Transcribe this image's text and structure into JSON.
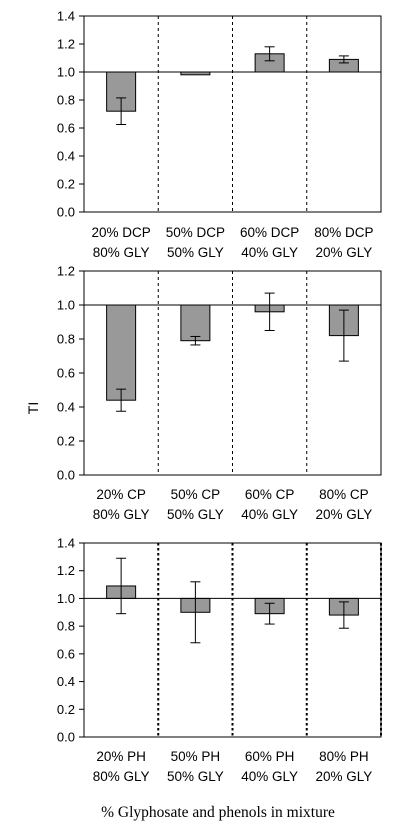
{
  "chart_data": [
    {
      "type": "bar",
      "categories": [
        [
          "20% DCP",
          "80% GLY"
        ],
        [
          "50% DCP",
          "50% GLY"
        ],
        [
          "60% DCP",
          "40% GLY"
        ],
        [
          "80% DCP",
          "20% GLY"
        ]
      ],
      "values": [
        0.72,
        0.98,
        1.13,
        1.09
      ],
      "errors": [
        0.095,
        0.0,
        0.05,
        0.025
      ],
      "baseline": 1.0,
      "ylim": [
        0.0,
        1.4
      ],
      "yticks": [
        "0.0",
        "0.2",
        "0.4",
        "0.6",
        "0.8",
        "1.0",
        "1.2",
        "1.4"
      ],
      "bar_color": "#999999",
      "separator_style": "dashed"
    },
    {
      "type": "bar",
      "categories": [
        [
          "20% CP",
          "80% GLY"
        ],
        [
          "50% CP",
          "50% GLY"
        ],
        [
          "60% CP",
          "40% GLY"
        ],
        [
          "80% CP",
          "20% GLY"
        ]
      ],
      "values": [
        0.44,
        0.79,
        0.96,
        0.82
      ],
      "errors": [
        0.065,
        0.025,
        0.11,
        0.15
      ],
      "baseline": 1.0,
      "ylim": [
        0.0,
        1.2
      ],
      "yticks": [
        "0.0",
        "0.2",
        "0.4",
        "0.6",
        "0.8",
        "1.0",
        "1.2"
      ],
      "bar_color": "#999999",
      "separator_style": "dashed",
      "ylabel": "TI"
    },
    {
      "type": "bar",
      "categories": [
        [
          "20% PH",
          "80% GLY"
        ],
        [
          "50% PH",
          "50% GLY"
        ],
        [
          "60% PH",
          "40% GLY"
        ],
        [
          "80% PH",
          "20% GLY"
        ]
      ],
      "values": [
        1.09,
        0.9,
        0.89,
        0.88
      ],
      "errors": [
        0.2,
        0.22,
        0.075,
        0.095
      ],
      "baseline": 1.0,
      "ylim": [
        0.0,
        1.4
      ],
      "yticks": [
        "0.0",
        "0.2",
        "0.4",
        "0.6",
        "0.8",
        "1.0",
        "1.2",
        "1.4"
      ],
      "bar_color": "#999999",
      "separator_style": "dotted-bold"
    }
  ],
  "xlabel": "% Glyphosate and phenols in mixture"
}
